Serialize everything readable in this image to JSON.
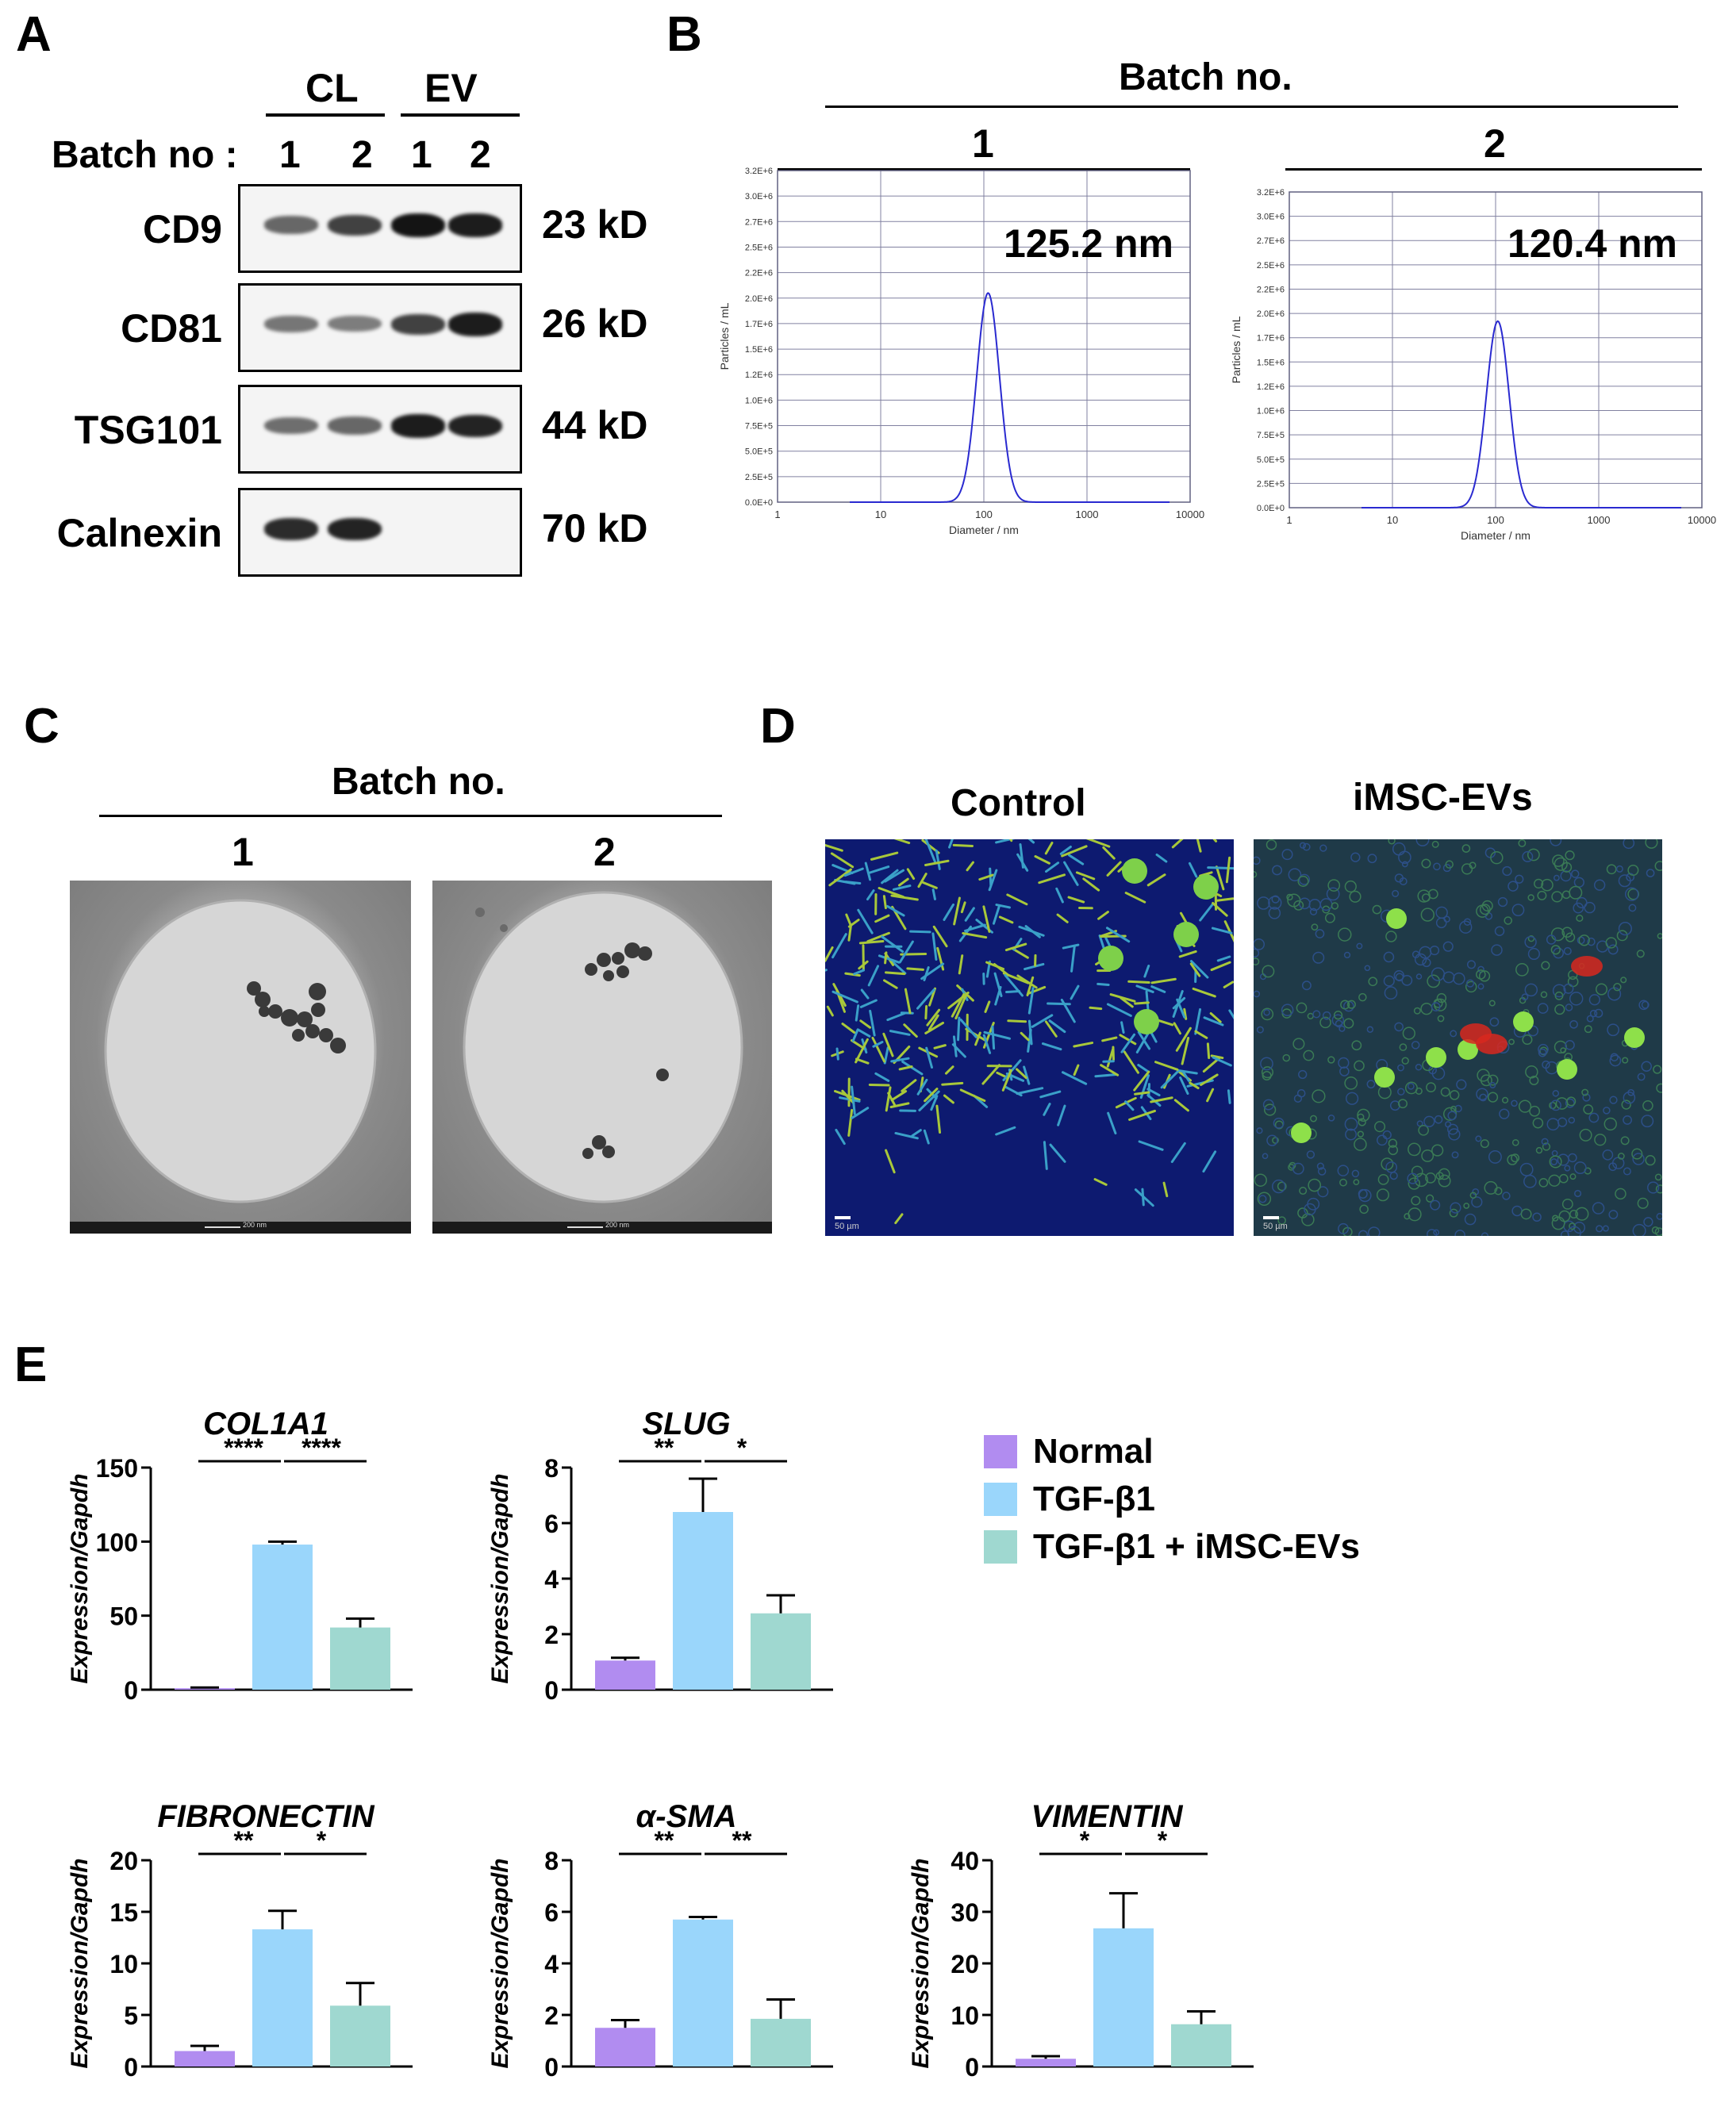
{
  "panels": {
    "A": "A",
    "B": "B",
    "C": "C",
    "D": "D",
    "E": "E"
  },
  "panelA": {
    "groups": [
      "CL",
      "EV"
    ],
    "batch_label": "Batch no :",
    "lanes": [
      "1",
      "2",
      "1",
      "2"
    ],
    "rows": [
      {
        "protein": "CD9",
        "mw": "23 kD",
        "intensity": [
          0.45,
          0.7,
          1.0,
          0.95
        ]
      },
      {
        "protein": "CD81",
        "mw": "26 kD",
        "intensity": [
          0.35,
          0.3,
          0.7,
          0.95
        ]
      },
      {
        "protein": "TSG101",
        "mw": "44 kD",
        "intensity": [
          0.4,
          0.45,
          0.95,
          0.9
        ]
      },
      {
        "protein": "Calnexin",
        "mw": "70 kD",
        "intensity": [
          0.85,
          0.9,
          0.0,
          0.0
        ]
      }
    ]
  },
  "panelB": {
    "title": "Batch no.",
    "plots": [
      {
        "batch": "1",
        "size_label": "125.2 nm",
        "peak": 110,
        "peak_value": 2050000.0,
        "yticks": [
          "0.0E+0",
          "2.5E+5",
          "5.0E+5",
          "7.5E+5",
          "1.0E+6",
          "1.2E+6",
          "1.5E+6",
          "1.7E+6",
          "2.0E+6",
          "2.2E+6",
          "2.5E+6",
          "2.7E+6",
          "3.0E+6",
          "3.2E+6"
        ],
        "xticks": [
          "1",
          "10",
          "100",
          "1000",
          "10000"
        ],
        "xlabel": "Diameter / nm",
        "ylabel": "Particles / mL"
      },
      {
        "batch": "2",
        "size_label": "120.4 nm",
        "peak": 105,
        "peak_value": 1920000.0,
        "yticks": [
          "0.0E+0",
          "2.5E+5",
          "5.0E+5",
          "7.5E+5",
          "1.0E+6",
          "1.2E+6",
          "1.5E+6",
          "1.7E+6",
          "2.0E+6",
          "2.2E+6",
          "2.5E+6",
          "2.7E+6",
          "3.0E+6",
          "3.2E+6"
        ],
        "xticks": [
          "1",
          "10",
          "100",
          "1000",
          "10000"
        ],
        "xlabel": "Diameter / nm",
        "ylabel": "Particles / mL"
      }
    ]
  },
  "panelC": {
    "title": "Batch no.",
    "images": [
      {
        "batch": "1",
        "scale": "200 nm"
      },
      {
        "batch": "2",
        "scale": "200 nm"
      }
    ]
  },
  "panelD": {
    "images": [
      {
        "label": "Control",
        "scale": "50 µm"
      },
      {
        "label": "iMSC-EVs",
        "scale": "50 µm"
      }
    ]
  },
  "legend": {
    "items": [
      {
        "name": "Normal",
        "color": "#b18cf0"
      },
      {
        "name": "TGF-β1",
        "color": "#9ad6fb"
      },
      {
        "name": "TGF-β1 + iMSC-EVs",
        "color": "#9fd8d0"
      }
    ]
  },
  "chart_data": [
    {
      "type": "bar",
      "title": "COL1A1",
      "ylabel": "Expression/Gapdh",
      "ylim": [
        0,
        150
      ],
      "yticks": [
        "0",
        "50",
        "100",
        "150"
      ],
      "categories": [
        "Normal",
        "TGF-β1",
        "TGF-β1 + iMSC-EVs"
      ],
      "values": [
        1,
        98,
        42
      ],
      "errors": [
        0.5,
        2,
        6
      ],
      "sig": [
        "****",
        "****"
      ]
    },
    {
      "type": "bar",
      "title": "SLUG",
      "ylabel": "Expression/Gapdh",
      "ylim": [
        0,
        8
      ],
      "yticks": [
        "0",
        "2",
        "4",
        "6",
        "8"
      ],
      "categories": [
        "Normal",
        "TGF-β1",
        "TGF-β1 + iMSC-EVs"
      ],
      "values": [
        1.05,
        6.4,
        2.75
      ],
      "errors": [
        0.1,
        1.2,
        0.65
      ],
      "sig": [
        "**",
        "*"
      ]
    },
    {
      "type": "bar",
      "title": "FIBRONECTIN",
      "ylabel": "Expression/Gapdh",
      "ylim": [
        0,
        20
      ],
      "yticks": [
        "0",
        "5",
        "10",
        "15",
        "20"
      ],
      "categories": [
        "Normal",
        "TGF-β1",
        "TGF-β1 + iMSC-EVs"
      ],
      "values": [
        1.5,
        13.3,
        5.9
      ],
      "errors": [
        0.5,
        1.8,
        2.2
      ],
      "sig": [
        "**",
        "*"
      ]
    },
    {
      "type": "bar",
      "title": "α-SMA",
      "ylabel": "Expression/Gapdh",
      "ylim": [
        0,
        8
      ],
      "yticks": [
        "0",
        "2",
        "4",
        "6",
        "8"
      ],
      "categories": [
        "Normal",
        "TGF-β1",
        "TGF-β1 + iMSC-EVs"
      ],
      "values": [
        1.5,
        5.7,
        1.85
      ],
      "errors": [
        0.3,
        0.1,
        0.75
      ],
      "sig": [
        "**",
        "**"
      ]
    },
    {
      "type": "bar",
      "title": "VIMENTIN",
      "ylabel": "Expression/Gapdh",
      "ylim": [
        0,
        40
      ],
      "yticks": [
        "0",
        "10",
        "20",
        "30",
        "40"
      ],
      "categories": [
        "Normal",
        "TGF-β1",
        "TGF-β1 + iMSC-EVs"
      ],
      "values": [
        1.5,
        26.8,
        8.2
      ],
      "errors": [
        0.5,
        6.8,
        2.5
      ],
      "sig": [
        "*",
        "*"
      ]
    }
  ]
}
